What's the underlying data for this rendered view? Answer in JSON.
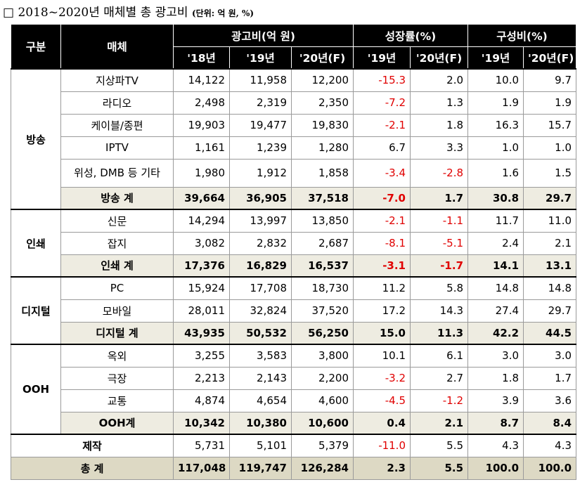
{
  "title": {
    "box": "□",
    "main": "2018~2020년 매체별 총 광고비",
    "unit": "(단위: 억 원, %)"
  },
  "header": {
    "category": "구분",
    "media": "매체",
    "ad_spend": "광고비(억 원)",
    "growth": "성장률(%)",
    "share": "구성비(%)",
    "y18": "'18년",
    "y19": "'19년",
    "y20f": "'20년(F)",
    "g19": "'19년",
    "g20f": "'20년(F)",
    "s19": "'19년",
    "s20f": "'20년(F)"
  },
  "groups": {
    "broadcast": {
      "name": "방송",
      "rows": [
        {
          "media": "지상파TV",
          "v18": "14,122",
          "v19": "11,958",
          "v20": "12,200",
          "g19": "-15.3",
          "g20": "2.0",
          "s19": "10.0",
          "s20": "9.7"
        },
        {
          "media": "라디오",
          "v18": "2,498",
          "v19": "2,319",
          "v20": "2,350",
          "g19": "-7.2",
          "g20": "1.3",
          "s19": "1.9",
          "s20": "1.9"
        },
        {
          "media": "케이블/종편",
          "v18": "19,903",
          "v19": "19,477",
          "v20": "19,830",
          "g19": "-2.1",
          "g20": "1.8",
          "s19": "16.3",
          "s20": "15.7"
        },
        {
          "media": "IPTV",
          "v18": "1,161",
          "v19": "1,239",
          "v20": "1,280",
          "g19": "6.7",
          "g20": "3.3",
          "s19": "1.0",
          "s20": "1.0"
        },
        {
          "media": "위성, DMB 등 기타",
          "v18": "1,980",
          "v19": "1,912",
          "v20": "1,858",
          "g19": "-3.4",
          "g20": "-2.8",
          "s19": "1.6",
          "s20": "1.5"
        }
      ],
      "total": {
        "media": "방송 계",
        "v18": "39,664",
        "v19": "36,905",
        "v20": "37,518",
        "g19": "-7.0",
        "g20": "1.7",
        "s19": "30.8",
        "s20": "29.7"
      }
    },
    "print": {
      "name": "인쇄",
      "rows": [
        {
          "media": "신문",
          "v18": "14,294",
          "v19": "13,997",
          "v20": "13,850",
          "g19": "-2.1",
          "g20": "-1.1",
          "s19": "11.7",
          "s20": "11.0"
        },
        {
          "media": "잡지",
          "v18": "3,082",
          "v19": "2,832",
          "v20": "2,687",
          "g19": "-8.1",
          "g20": "-5.1",
          "s19": "2.4",
          "s20": "2.1"
        }
      ],
      "total": {
        "media": "인쇄 계",
        "v18": "17,376",
        "v19": "16,829",
        "v20": "16,537",
        "g19": "-3.1",
        "g20": "-1.7",
        "s19": "14.1",
        "s20": "13.1"
      }
    },
    "digital": {
      "name": "디지털",
      "rows": [
        {
          "media": "PC",
          "v18": "15,924",
          "v19": "17,708",
          "v20": "18,730",
          "g19": "11.2",
          "g20": "5.8",
          "s19": "14.8",
          "s20": "14.8"
        },
        {
          "media": "모바일",
          "v18": "28,011",
          "v19": "32,824",
          "v20": "37,520",
          "g19": "17.2",
          "g20": "14.3",
          "s19": "27.4",
          "s20": "29.7"
        }
      ],
      "total": {
        "media": "디지털 계",
        "v18": "43,935",
        "v19": "50,532",
        "v20": "56,250",
        "g19": "15.0",
        "g20": "11.3",
        "s19": "42.2",
        "s20": "44.5"
      }
    },
    "ooh": {
      "name": "OOH",
      "rows": [
        {
          "media": "옥외",
          "v18": "3,255",
          "v19": "3,583",
          "v20": "3,800",
          "g19": "10.1",
          "g20": "6.1",
          "s19": "3.0",
          "s20": "3.0"
        },
        {
          "media": "극장",
          "v18": "2,213",
          "v19": "2,143",
          "v20": "2,200",
          "g19": "-3.2",
          "g20": "2.7",
          "s19": "1.8",
          "s20": "1.7"
        },
        {
          "media": "교통",
          "v18": "4,874",
          "v19": "4,654",
          "v20": "4,600",
          "g19": "-4.5",
          "g20": "-1.2",
          "s19": "3.9",
          "s20": "3.6"
        }
      ],
      "total": {
        "media": "OOH계",
        "v18": "10,342",
        "v19": "10,380",
        "v20": "10,600",
        "g19": "0.4",
        "g20": "2.1",
        "s19": "8.7",
        "s20": "8.4"
      }
    }
  },
  "production": {
    "media": "제작",
    "v18": "5,731",
    "v19": "5,101",
    "v20": "5,379",
    "g19": "-11.0",
    "g20": "5.5",
    "s19": "4.3",
    "s20": "4.3"
  },
  "grand_total": {
    "media": "총 계",
    "v18": "117,048",
    "v19": "119,747",
    "v20": "126,284",
    "g19": "2.3",
    "g20": "5.5",
    "s19": "100.0",
    "s20": "100.0"
  },
  "colors": {
    "negative": "#e00000",
    "subtotal_bg": "#eeece1",
    "grand_bg": "#ddd9c4",
    "header_bg": "#000000"
  }
}
